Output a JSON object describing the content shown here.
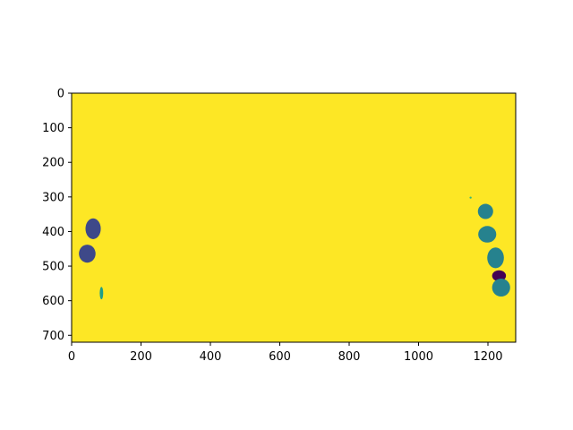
{
  "chart_data": {
    "type": "heatmap",
    "title": "",
    "xlabel": "",
    "ylabel": "",
    "xlim": [
      0,
      1280
    ],
    "ylim": [
      720,
      0
    ],
    "x_ticks": [
      0,
      200,
      400,
      600,
      800,
      1000,
      1200
    ],
    "y_ticks": [
      0,
      100,
      200,
      300,
      400,
      500,
      600,
      700
    ],
    "x_tick_labels": [
      "0",
      "200",
      "400",
      "600",
      "800",
      "1000",
      "1200"
    ],
    "y_tick_labels": [
      "0",
      "100",
      "200",
      "300",
      "400",
      "500",
      "600",
      "700"
    ],
    "grid": false,
    "colormap": "viridis",
    "colors": {
      "background": "#fde725",
      "teal": "#1f9e89",
      "blue_teal": "#26828e",
      "blue": "#31688e",
      "indigo": "#3e4989",
      "purple": "#440154",
      "dark_purple": "#482878",
      "green": "#35b779"
    },
    "blobs": [
      {
        "name": "left-blob-1",
        "cx": 62,
        "cy": 392,
        "rx": 22,
        "ry": 30,
        "color": "indigo"
      },
      {
        "name": "left-blob-2",
        "cx": 45,
        "cy": 464,
        "rx": 24,
        "ry": 26,
        "color": "indigo"
      },
      {
        "name": "left-sliver",
        "cx": 86,
        "cy": 578,
        "rx": 5,
        "ry": 18,
        "color": "teal"
      },
      {
        "name": "right-blob-1",
        "cx": 1193,
        "cy": 342,
        "rx": 22,
        "ry": 22,
        "color": "blue_teal"
      },
      {
        "name": "right-blob-2",
        "cx": 1198,
        "cy": 408,
        "rx": 26,
        "ry": 24,
        "color": "blue_teal"
      },
      {
        "name": "right-blob-3",
        "cx": 1222,
        "cy": 476,
        "rx": 24,
        "ry": 30,
        "color": "blue_teal"
      },
      {
        "name": "right-blob-4",
        "cx": 1232,
        "cy": 528,
        "rx": 20,
        "ry": 16,
        "color": "purple"
      },
      {
        "name": "right-blob-5",
        "cx": 1238,
        "cy": 562,
        "rx": 26,
        "ry": 26,
        "color": "blue_teal"
      },
      {
        "name": "right-speck",
        "cx": 1150,
        "cy": 302,
        "rx": 3,
        "ry": 3,
        "color": "green"
      }
    ]
  }
}
